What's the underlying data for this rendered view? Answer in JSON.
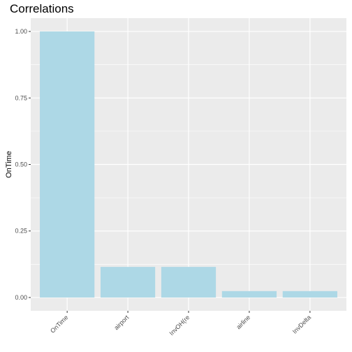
{
  "chart_data": {
    "type": "bar",
    "title": "Correlations",
    "xlabel": "",
    "ylabel": "OnTime",
    "categories": [
      "OnTime",
      "airport",
      "InvOH(re",
      "airline",
      "InvDelta"
    ],
    "values": [
      1.0,
      0.115,
      0.115,
      0.024,
      0.024
    ],
    "ylim": [
      -0.05,
      1.05
    ],
    "yticks": [
      0.0,
      0.25,
      0.5,
      0.75,
      1.0
    ],
    "ytick_labels": [
      "0.00",
      "0.25",
      "0.50",
      "0.75",
      "1.00"
    ],
    "grid": true,
    "bar_color": "#add8e6",
    "panel_color": "#ebebeb",
    "grid_color": "#ffffff"
  }
}
